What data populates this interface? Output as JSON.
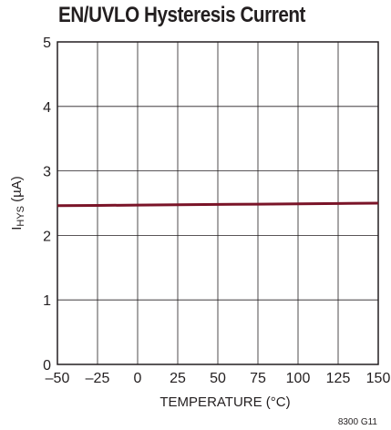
{
  "chart_data": {
    "type": "line",
    "title": "EN/UVLO Hysteresis Current",
    "xlabel": "TEMPERATURE (°C)",
    "ylabel_main": "I",
    "ylabel_sub": "HYS",
    "ylabel_unit": " (µA)",
    "xlim": [
      -50,
      150
    ],
    "ylim": [
      0,
      5
    ],
    "x_ticks": [
      -50,
      -25,
      0,
      25,
      50,
      75,
      100,
      125,
      150
    ],
    "x_tick_labels": [
      "–50",
      "–25",
      "0",
      "25",
      "50",
      "75",
      "100",
      "125",
      "150"
    ],
    "y_ticks": [
      0,
      1,
      2,
      3,
      4,
      5
    ],
    "y_tick_labels": [
      "0",
      "1",
      "2",
      "3",
      "4",
      "5"
    ],
    "grid": true,
    "series": [
      {
        "x": [
          -50,
          -25,
          0,
          25,
          50,
          75,
          100,
          125,
          150
        ],
        "y": [
          2.46,
          2.465,
          2.47,
          2.475,
          2.48,
          2.485,
          2.49,
          2.495,
          2.5
        ],
        "color": "#7a1428"
      }
    ],
    "figure_code": "8300 G11"
  }
}
